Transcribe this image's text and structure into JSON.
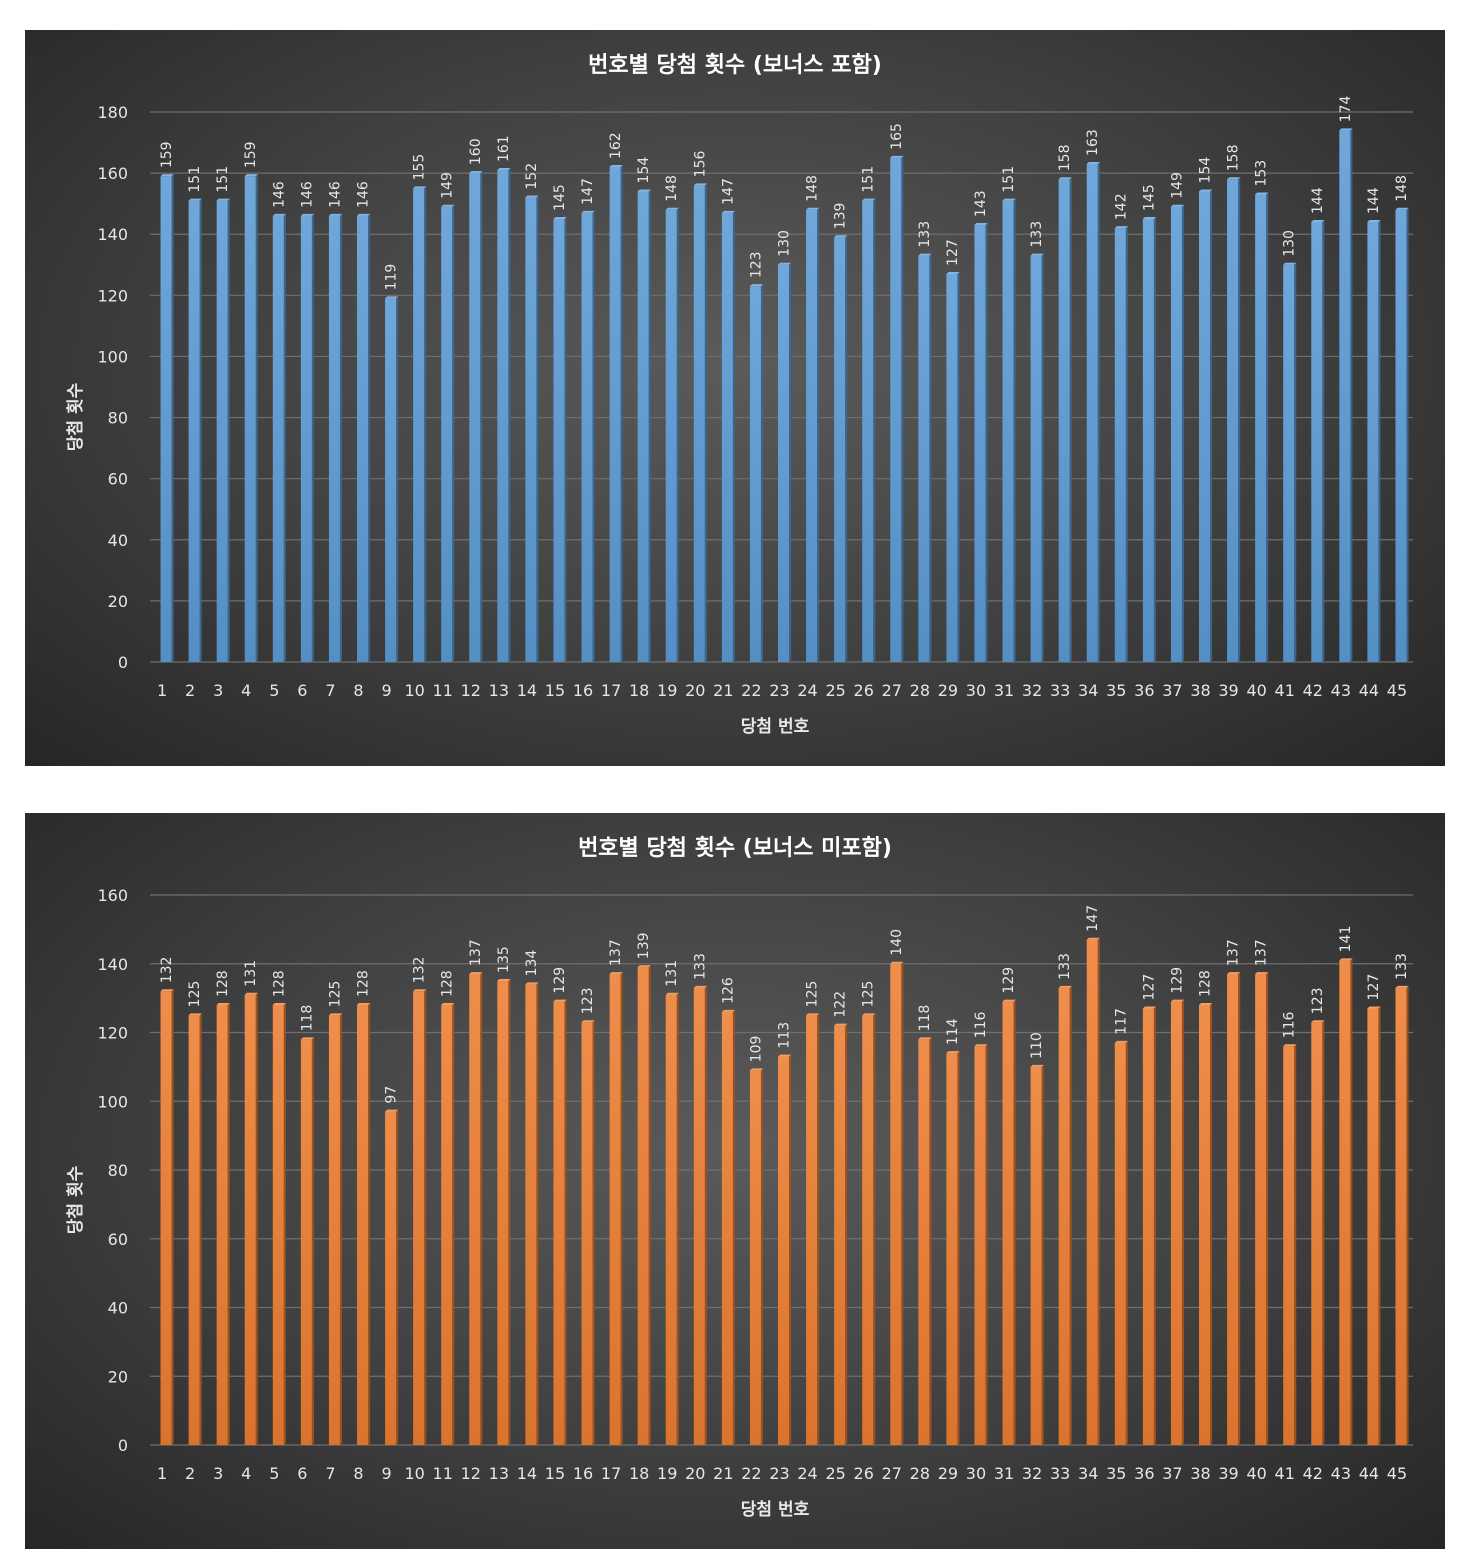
{
  "chart_data": [
    {
      "type": "bar",
      "title": "번호별 당첨 횟수 (보너스 포함)",
      "xlabel": "당첨 번호",
      "ylabel": "당첨 횟수",
      "ylim": [
        0,
        180
      ],
      "yticks": [
        "0",
        "20",
        "40",
        "60",
        "80",
        "100",
        "120",
        "140",
        "160",
        "180"
      ],
      "categories": [
        "1",
        "2",
        "3",
        "4",
        "5",
        "6",
        "7",
        "8",
        "9",
        "10",
        "11",
        "12",
        "13",
        "14",
        "15",
        "16",
        "17",
        "18",
        "19",
        "20",
        "21",
        "22",
        "23",
        "24",
        "25",
        "26",
        "27",
        "28",
        "29",
        "30",
        "31",
        "32",
        "33",
        "34",
        "35",
        "36",
        "37",
        "38",
        "39",
        "40",
        "41",
        "42",
        "43",
        "44",
        "45"
      ],
      "values": [
        159,
        151,
        151,
        159,
        146,
        146,
        146,
        146,
        119,
        155,
        149,
        160,
        161,
        152,
        145,
        147,
        162,
        154,
        148,
        156,
        147,
        123,
        130,
        148,
        139,
        151,
        165,
        133,
        127,
        143,
        151,
        133,
        158,
        163,
        142,
        145,
        149,
        154,
        158,
        153,
        130,
        144,
        174,
        144,
        148
      ],
      "grid": true,
      "legend": "none",
      "color": "#5b9bd5"
    },
    {
      "type": "bar",
      "title": "번호별 당첨 횟수 (보너스 미포함)",
      "xlabel": "당첨 번호",
      "ylabel": "당첨 횟수",
      "ylim": [
        0,
        160
      ],
      "yticks": [
        "0",
        "20",
        "40",
        "60",
        "80",
        "100",
        "120",
        "140",
        "160"
      ],
      "categories": [
        "1",
        "2",
        "3",
        "4",
        "5",
        "6",
        "7",
        "8",
        "9",
        "10",
        "11",
        "12",
        "13",
        "14",
        "15",
        "16",
        "17",
        "18",
        "19",
        "20",
        "21",
        "22",
        "23",
        "24",
        "25",
        "26",
        "27",
        "28",
        "29",
        "30",
        "31",
        "32",
        "33",
        "34",
        "35",
        "36",
        "37",
        "38",
        "39",
        "40",
        "41",
        "42",
        "43",
        "44",
        "45"
      ],
      "values": [
        132,
        125,
        128,
        131,
        128,
        118,
        125,
        128,
        97,
        132,
        128,
        137,
        135,
        134,
        129,
        123,
        137,
        139,
        131,
        133,
        126,
        109,
        113,
        125,
        122,
        125,
        140,
        118,
        114,
        116,
        129,
        110,
        133,
        147,
        117,
        127,
        129,
        128,
        137,
        137,
        116,
        123,
        141,
        127,
        133
      ],
      "grid": true,
      "legend": "none",
      "color": "#ed7d31"
    }
  ]
}
